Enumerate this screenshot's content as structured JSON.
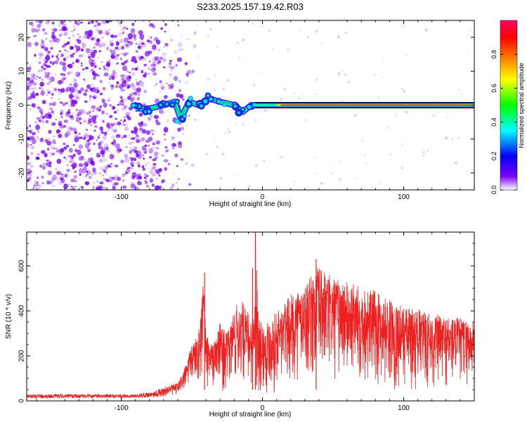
{
  "title": "S233.2025.157.19.42.R03",
  "chart_data": [
    {
      "type": "heatmap",
      "xlabel": "Height of straight line (km)",
      "ylabel": "Frequency (Hz)",
      "xlim": [
        -167,
        150
      ],
      "ylim": [
        -25,
        25
      ],
      "xticks": [
        -100,
        0,
        100
      ],
      "xtick_labels": [
        "-100",
        "0",
        "100"
      ],
      "yticks": [
        -20,
        -10,
        0,
        10,
        20
      ],
      "ytick_labels": [
        "-20",
        "-10",
        "0",
        "10",
        "20"
      ],
      "colorbar": {
        "label": "Normalized spectral amplitude",
        "range": [
          0,
          1
        ],
        "ticks": [
          0.0,
          0.2,
          0.4,
          0.6,
          0.8
        ],
        "tick_labels": [
          "0.0",
          "0.2",
          "0.4",
          "0.6",
          "0.8"
        ],
        "colormap": [
          "#ffffff",
          "#6600ff",
          "#0000ff",
          "#00ffff",
          "#00ff00",
          "#ffff00",
          "#ff0000",
          "#ff0066"
        ]
      },
      "features": {
        "noise_region_x": [
          -167,
          -60
        ],
        "noise_color": "#7700ee",
        "ridge": [
          {
            "x": -90,
            "y": -1
          },
          {
            "x": -80,
            "y": -1
          },
          {
            "x": -70,
            "y": 0
          },
          {
            "x": -62,
            "y": 1
          },
          {
            "x": -58,
            "y": -4
          },
          {
            "x": -52,
            "y": 1
          },
          {
            "x": -45,
            "y": 0
          },
          {
            "x": -38,
            "y": 2
          },
          {
            "x": -30,
            "y": 1
          },
          {
            "x": -20,
            "y": 0
          },
          {
            "x": -14,
            "y": -2
          },
          {
            "x": -8,
            "y": 0
          },
          {
            "x": 0,
            "y": 0
          },
          {
            "x": 20,
            "y": 0
          },
          {
            "x": 80,
            "y": 0
          },
          {
            "x": 150,
            "y": 0
          }
        ],
        "constant_line_start": 10,
        "constant_line_y": 0
      }
    },
    {
      "type": "line",
      "xlabel": "Height of straight line (km)",
      "ylabel": "SNR (10 * v/v)",
      "xlim": [
        -167,
        150
      ],
      "ylim": [
        0,
        750
      ],
      "xticks": [
        -100,
        0,
        100
      ],
      "xtick_labels": [
        "-100",
        "0",
        "100"
      ],
      "yticks": [
        0,
        200,
        400,
        600
      ],
      "ytick_labels": [
        "0",
        "200",
        "400",
        "600"
      ],
      "color": "#ee2020",
      "envelope": {
        "x": [
          -167,
          -120,
          -90,
          -80,
          -70,
          -60,
          -55,
          -50,
          -45,
          -42,
          -40,
          -35,
          -30,
          -25,
          -20,
          -15,
          -10,
          -6,
          -5,
          -3,
          0,
          10,
          20,
          30,
          40,
          50,
          60,
          70,
          80,
          90,
          100,
          110,
          120,
          130,
          140,
          150
        ],
        "y_max": [
          30,
          30,
          30,
          40,
          60,
          80,
          150,
          250,
          320,
          570,
          300,
          250,
          350,
          300,
          420,
          450,
          390,
          380,
          750,
          420,
          340,
          400,
          470,
          520,
          600,
          550,
          530,
          510,
          490,
          450,
          420,
          410,
          390,
          380,
          370,
          350
        ],
        "y_min": [
          12,
          12,
          14,
          15,
          18,
          20,
          30,
          60,
          70,
          40,
          60,
          40,
          40,
          30,
          30,
          40,
          30,
          20,
          30,
          20,
          20,
          30,
          60,
          80,
          60,
          60,
          60,
          60,
          50,
          40,
          40,
          30,
          30,
          30,
          50,
          60
        ]
      },
      "spikes": [
        {
          "x": -41,
          "y": 570
        },
        {
          "x": -5,
          "y": 750
        },
        {
          "x": -7,
          "y": 590
        },
        {
          "x": 38,
          "y": 630
        }
      ]
    }
  ]
}
